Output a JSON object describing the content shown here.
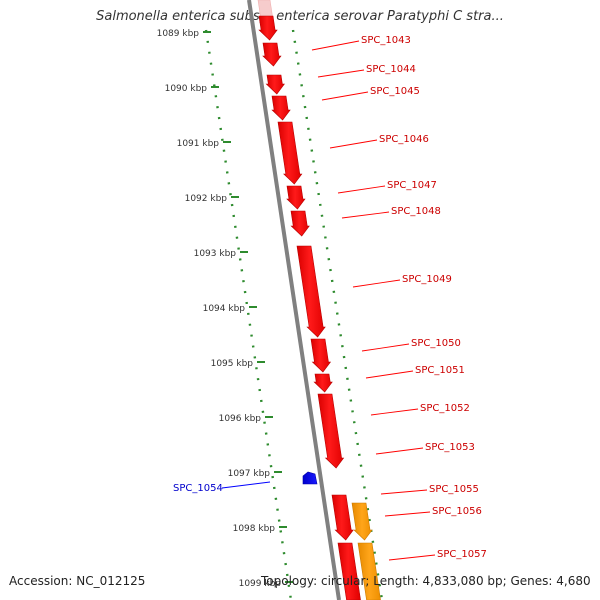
{
  "title": "Salmonella enterica subsp. enterica serovar Paratyphi C stra...",
  "footer": {
    "accession": "Accession: NC_012125",
    "summary": "Topology: circular; Length: 4,833,080 bp; Genes: 4,680"
  },
  "scale_labels": [
    "1089 kbp",
    "1090 kbp",
    "1091 kbp",
    "1092 kbp",
    "1093 kbp",
    "1094 kbp",
    "1095 kbp",
    "1096 kbp",
    "1097 kbp",
    "1098 kbp",
    "1099 kbp"
  ],
  "gene_labels": [
    "SPC_1043",
    "SPC_1044",
    "SPC_1045",
    "SPC_1046",
    "SPC_1047",
    "SPC_1048",
    "SPC_1049",
    "SPC_1050",
    "SPC_1051",
    "SPC_1052",
    "SPC_1053",
    "SPC_1054",
    "SPC_1055",
    "SPC_1056",
    "SPC_1057"
  ],
  "colors": {
    "backbone": "#808080",
    "scale_dots": "#2e8b2e",
    "forward_gene": "#ff0000",
    "forward_label": "#cc0000",
    "reverse_gene": "#0000ff",
    "reverse_label": "#0000cc",
    "orange_gene": "#ff9900"
  }
}
